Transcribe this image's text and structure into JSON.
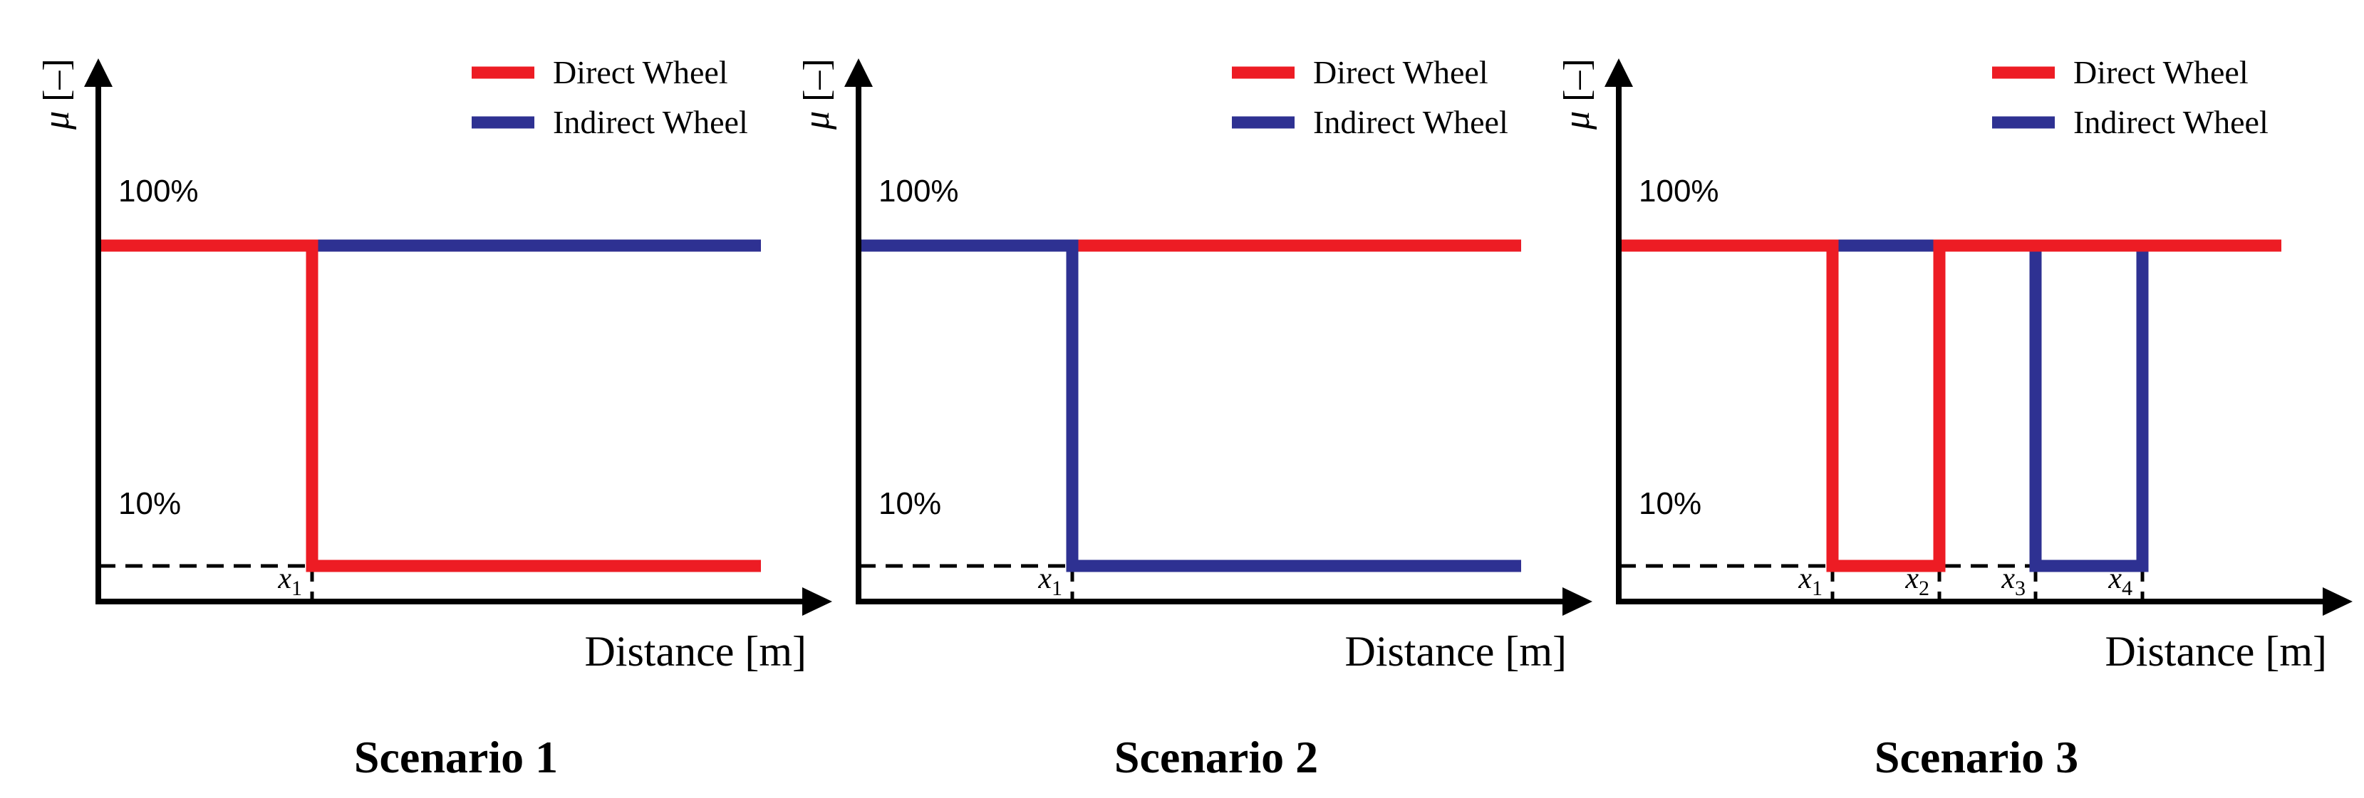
{
  "figure": {
    "colors": {
      "direct": "#ED1C24",
      "indirect": "#2E3192",
      "axis": "#000000"
    },
    "legend_labels": {
      "direct": "Direct Wheel",
      "indirect": "Indirect Wheel"
    },
    "y_axis_label": "μ [–]",
    "x_axis_label": "Distance [m]",
    "level_labels": {
      "high": "100%",
      "low": "10%"
    }
  },
  "chart_data": [
    {
      "type": "line",
      "title": "Scenario 1",
      "xlabel": "Distance [m]",
      "ylabel": "μ [–]",
      "ylim": [
        0,
        125
      ],
      "legend": "top-right",
      "x_markers": [
        {
          "label": "x",
          "subscript": "1",
          "x": 1
        }
      ],
      "series": [
        {
          "name": "Direct Wheel",
          "color": "#ED1C24",
          "points": [
            [
              0,
              100
            ],
            [
              1,
              100
            ],
            [
              1,
              10
            ],
            [
              3.1,
              10
            ]
          ]
        },
        {
          "name": "Indirect Wheel",
          "color": "#2E3192",
          "points": [
            [
              0,
              100
            ],
            [
              3.1,
              100
            ]
          ]
        }
      ]
    },
    {
      "type": "line",
      "title": "Scenario 2",
      "xlabel": "Distance [m]",
      "ylabel": "μ [–]",
      "ylim": [
        0,
        125
      ],
      "legend": "top-right",
      "x_markers": [
        {
          "label": "x",
          "subscript": "1",
          "x": 1
        }
      ],
      "series": [
        {
          "name": "Direct Wheel",
          "color": "#ED1C24",
          "points": [
            [
              0,
              100
            ],
            [
              3.1,
              100
            ]
          ]
        },
        {
          "name": "Indirect Wheel",
          "color": "#2E3192",
          "points": [
            [
              0,
              100
            ],
            [
              1,
              100
            ],
            [
              1,
              10
            ],
            [
              3.1,
              10
            ]
          ]
        }
      ]
    },
    {
      "type": "line",
      "title": "Scenario 3",
      "xlabel": "Distance [m]",
      "ylabel": "μ [–]",
      "ylim": [
        0,
        125
      ],
      "legend": "top-right",
      "x_markers": [
        {
          "label": "x",
          "subscript": "1",
          "x": 1
        },
        {
          "label": "x",
          "subscript": "2",
          "x": 1.5
        },
        {
          "label": "x",
          "subscript": "3",
          "x": 1.95
        },
        {
          "label": "x",
          "subscript": "4",
          "x": 2.45
        }
      ],
      "series": [
        {
          "name": "Direct Wheel",
          "color": "#ED1C24",
          "points": [
            [
              0,
              100
            ],
            [
              1,
              100
            ],
            [
              1,
              10
            ],
            [
              1.5,
              10
            ],
            [
              1.5,
              100
            ],
            [
              3.1,
              100
            ]
          ]
        },
        {
          "name": "Indirect Wheel",
          "color": "#2E3192",
          "points": [
            [
              0,
              100
            ],
            [
              1.95,
              100
            ],
            [
              1.95,
              10
            ],
            [
              2.45,
              10
            ],
            [
              2.45,
              100
            ],
            [
              3.1,
              100
            ]
          ]
        }
      ]
    }
  ]
}
